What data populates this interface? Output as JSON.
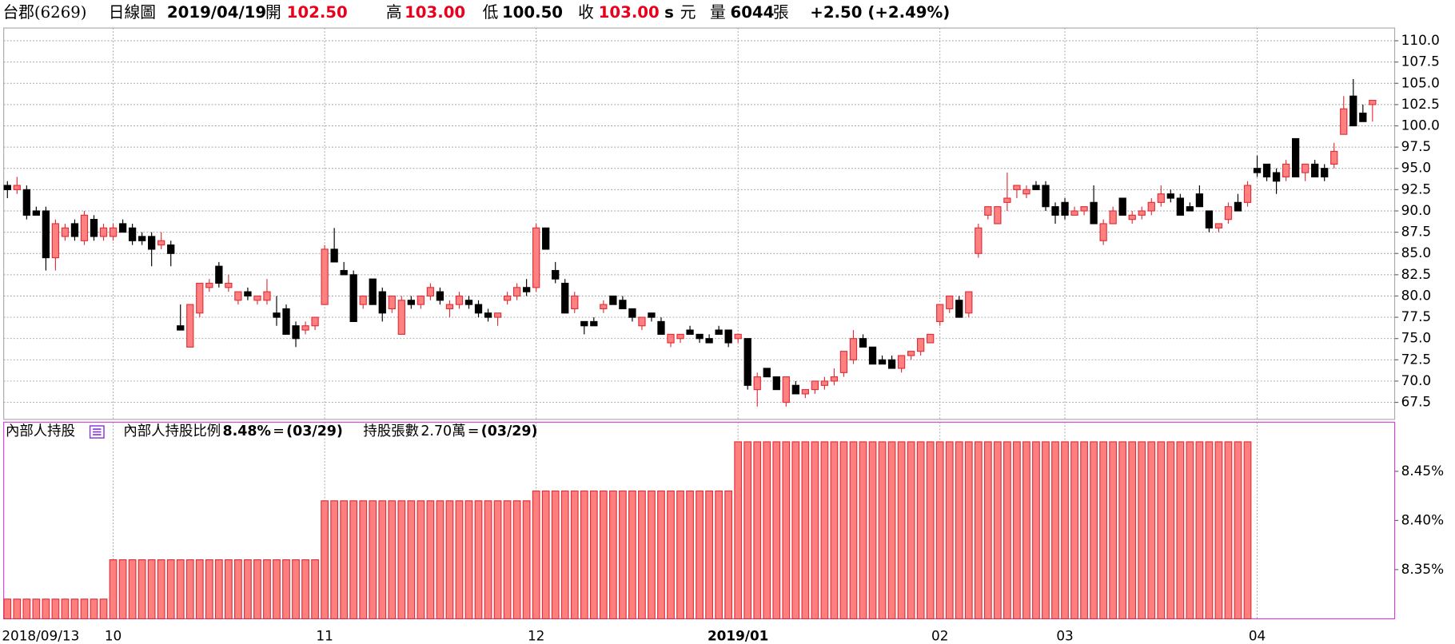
{
  "header": {
    "stock": "台郡(6269)",
    "period": "日線圖",
    "date": "2019/04/19",
    "open_label": "開",
    "open": "102.50",
    "high_label": "高",
    "high": "103.00",
    "low_label": "低",
    "low": "100.50",
    "close_label": "收",
    "close": "103.00",
    "s": "s",
    "unit": "元",
    "volume_label": "量",
    "volume": "6044",
    "volume_unit": "張",
    "change": "+2.50 (+2.49%)"
  },
  "chart_data": [
    {
      "type": "candlestick",
      "up_color": "#e0303a",
      "up_fill": "#ff8080",
      "down_color": "#000000",
      "grid": true,
      "ylim": [
        65.5,
        111.5
      ],
      "yticks": [
        67.5,
        {
          "value": 70,
          "label": "70.0"
        },
        72.5,
        {
          "value": 75,
          "label": "75.0"
        },
        77.5,
        {
          "value": 80,
          "label": "80.0"
        },
        82.5,
        {
          "value": 85,
          "label": "85.0"
        },
        87.5,
        {
          "value": 90,
          "label": "90.0"
        },
        92.5,
        {
          "value": 95,
          "label": "95.0"
        },
        97.5,
        {
          "value": 100,
          "label": "100.0"
        },
        102.5,
        {
          "value": 105,
          "label": "105.0"
        },
        107.5,
        {
          "value": 110,
          "label": "110.0"
        }
      ],
      "open": [
        93,
        92.5,
        92.5,
        90,
        90,
        84.5,
        87,
        88.5,
        86.5,
        89,
        87,
        87,
        88.5,
        88,
        87,
        87,
        86,
        86,
        76.5,
        74,
        78,
        81,
        83.5,
        81,
        79.5,
        80.5,
        79.5,
        79.5,
        78,
        78.5,
        76.5,
        76,
        76.5,
        79,
        85.5,
        83,
        82.5,
        79,
        82,
        80.5,
        78.5,
        75.5,
        79.5,
        79,
        80,
        80.5,
        78.5,
        79,
        79.5,
        79,
        78,
        77.5,
        79.5,
        80,
        81,
        81,
        88,
        83,
        81.5,
        78.5,
        77,
        77,
        78.5,
        80,
        79.5,
        78.5,
        76.5,
        78,
        77,
        74.5,
        75,
        76,
        75.5,
        75,
        76,
        76,
        75,
        75,
        69,
        71.5,
        70.5,
        67.5,
        69.5,
        68.5,
        69,
        69.5,
        70,
        71,
        72.5,
        75,
        74,
        72.5,
        72.5,
        71.5,
        73,
        73.5,
        74.5,
        77,
        78.5,
        79.5,
        78,
        85,
        89.5,
        88.5,
        91,
        92.5,
        92,
        93,
        93,
        90.5,
        91,
        89.5,
        90,
        91,
        86.5,
        88.5,
        91.5,
        89,
        89.5,
        90,
        91,
        92,
        91.5,
        90.5,
        92,
        90,
        88,
        89,
        91,
        91,
        95,
        95.5,
        94.5,
        94,
        98.5,
        94.5,
        95.5,
        95,
        95.5,
        99,
        103.5,
        101.5,
        102.5
      ],
      "high": [
        93.5,
        94,
        93,
        90.5,
        90.5,
        89,
        88.5,
        89,
        90,
        89.5,
        88.5,
        88.5,
        89,
        88.5,
        87.5,
        87.5,
        87.5,
        86.5,
        79,
        79,
        81.5,
        82,
        84,
        82.5,
        80.5,
        81,
        80,
        82,
        80,
        79,
        77,
        77,
        77.5,
        86,
        88,
        84,
        83,
        80,
        82,
        81,
        80,
        80,
        80,
        80,
        81.5,
        81,
        79.5,
        80.5,
        80,
        79.5,
        78.5,
        78,
        80.5,
        81.5,
        82,
        88.5,
        88,
        84,
        82,
        80.5,
        77,
        77.5,
        79.5,
        80,
        80,
        78.5,
        77.5,
        78,
        77.5,
        75.5,
        75.5,
        76.5,
        75.5,
        75.5,
        76.5,
        76,
        75.5,
        75,
        71,
        71.5,
        70.5,
        70.5,
        70,
        69,
        70,
        70.5,
        71.5,
        73.5,
        76,
        75.5,
        74,
        73,
        73,
        73,
        73.5,
        75,
        75.5,
        79,
        80,
        80,
        80.5,
        88.5,
        90.5,
        90.5,
        94.5,
        93,
        93,
        93.5,
        93.5,
        91,
        91.5,
        90.5,
        90.5,
        93,
        89,
        90.5,
        91.5,
        90,
        90.5,
        91.5,
        93,
        92.5,
        92,
        91,
        93,
        90,
        88.5,
        91,
        92,
        93.5,
        96.5,
        95.5,
        95,
        96,
        98.5,
        95.5,
        96,
        95.5,
        98,
        103.5,
        105.5,
        102.5,
        103
      ],
      "low": [
        91.5,
        92,
        89,
        89.5,
        83,
        83,
        86.5,
        86.5,
        86,
        86.5,
        86.5,
        86.5,
        87.5,
        86,
        86,
        83.5,
        85.5,
        83.5,
        76,
        74,
        77.5,
        80.5,
        81,
        80.5,
        79,
        79.5,
        79,
        79,
        76.5,
        75.5,
        74,
        75.5,
        76,
        79,
        84,
        82.5,
        77,
        78.5,
        79,
        77,
        78,
        75.5,
        78.5,
        78.5,
        79.5,
        79,
        77.5,
        78.5,
        78.5,
        77.5,
        77,
        76.5,
        79,
        79.5,
        80,
        80.5,
        85.5,
        81.5,
        78,
        78,
        75.5,
        76.5,
        78,
        79,
        78.5,
        77,
        76,
        77,
        75.5,
        74,
        74.5,
        75.5,
        74.5,
        74.5,
        75.5,
        74,
        74.5,
        69,
        67,
        70.5,
        69,
        67,
        68.5,
        68,
        68.5,
        69,
        69.5,
        70.5,
        72,
        74,
        72,
        72,
        71.5,
        71,
        72.5,
        73,
        74.5,
        76.5,
        78,
        77.5,
        77.5,
        84.5,
        89,
        88.5,
        90,
        91.5,
        91.5,
        92.5,
        90,
        88.5,
        89,
        89.5,
        89.5,
        88.5,
        86,
        88.5,
        89.5,
        88.5,
        89,
        89.5,
        90.5,
        91,
        89.5,
        90,
        90.5,
        87.5,
        87.5,
        88.5,
        90,
        90.5,
        94,
        93.5,
        92,
        93.5,
        94,
        93.5,
        94,
        93.5,
        95,
        99,
        100,
        100.5,
        100.5
      ],
      "close": [
        92.5,
        93,
        89.5,
        89.5,
        84.5,
        88.5,
        88,
        87,
        89.5,
        87,
        88,
        88,
        87.5,
        86.5,
        86.5,
        85.5,
        86.5,
        85,
        76,
        79,
        81.5,
        81.5,
        81.5,
        81.5,
        80.5,
        80,
        80,
        80.5,
        77.5,
        75.5,
        75,
        76.5,
        77.5,
        85.5,
        84,
        82.5,
        77,
        80,
        79,
        78,
        80,
        79.5,
        79,
        80,
        81,
        79.5,
        79,
        80,
        79,
        78,
        77.5,
        78,
        80,
        81,
        80.5,
        88,
        85.5,
        82,
        78,
        80,
        76.5,
        76.5,
        79,
        79,
        78.5,
        77.5,
        77.5,
        77.5,
        75.5,
        75.5,
        75.5,
        75.5,
        75,
        74.5,
        75.5,
        74.5,
        75.5,
        69.5,
        70.5,
        70.5,
        69,
        70.5,
        68.5,
        69,
        70,
        70,
        70.5,
        73.5,
        75,
        74,
        72,
        72,
        71.5,
        73,
        73.5,
        75,
        75.5,
        79,
        80,
        77.5,
        80.5,
        88,
        90.5,
        90.5,
        91.5,
        93,
        92.5,
        92.5,
        90.5,
        89.5,
        89.5,
        90,
        90.5,
        88.5,
        88.5,
        90,
        89.5,
        89.5,
        90,
        91,
        92,
        91.5,
        89.5,
        90,
        90.5,
        88,
        88.5,
        90.5,
        90,
        93,
        94.5,
        94,
        93.5,
        95.5,
        94,
        95.5,
        94,
        94,
        97,
        102,
        100,
        100.5,
        103
      ]
    },
    {
      "type": "bar",
      "title": "內部人持股",
      "color": "#ff7f7f",
      "edge_color": "#e0303a",
      "border_color": "#d63fd6",
      "legend": [
        {
          "name": "內部人持股比例",
          "value": "8.48%",
          "eq": "=",
          "date": "(03/29)",
          "color": "#e8408c"
        },
        {
          "name": "持股張數",
          "value": "2.70萬",
          "eq": "=",
          "date": "(03/29)",
          "color": "#1fb8b8"
        }
      ],
      "ylim": [
        8.3,
        8.5
      ],
      "yticks": [
        {
          "value": 8.35,
          "label": "8.35%"
        },
        {
          "value": 8.4,
          "label": "8.40%"
        },
        {
          "value": 8.45,
          "label": "8.45%"
        }
      ],
      "categories": [
        "2018/09/13",
        null,
        null,
        null,
        null,
        null,
        null,
        null,
        null,
        null,
        null,
        "10",
        null,
        null,
        null,
        null,
        null,
        null,
        null,
        null,
        null,
        null,
        null,
        null,
        null,
        null,
        null,
        null,
        null,
        null,
        null,
        null,
        null,
        "11",
        null,
        null,
        null,
        null,
        null,
        null,
        null,
        null,
        null,
        null,
        null,
        null,
        null,
        null,
        null,
        null,
        null,
        null,
        null,
        null,
        null,
        "12",
        null,
        null,
        null,
        null,
        null,
        null,
        null,
        null,
        null,
        null,
        null,
        null,
        null,
        null,
        null,
        null,
        null,
        null,
        null,
        null,
        "2019/01",
        null,
        null,
        null,
        null,
        null,
        null,
        null,
        null,
        null,
        null,
        null,
        null,
        null,
        null,
        null,
        null,
        null,
        null,
        null,
        null,
        "02",
        null,
        null,
        null,
        null,
        null,
        null,
        null,
        null,
        null,
        null,
        null,
        null,
        "03",
        null,
        null,
        null,
        null,
        null,
        null,
        null,
        null,
        null,
        null,
        null,
        null,
        null,
        null,
        null,
        null,
        null,
        null,
        null,
        "04",
        null,
        null,
        null,
        null,
        null,
        null,
        null,
        null,
        null,
        null,
        null,
        null
      ],
      "values": [
        8.32,
        8.32,
        8.32,
        8.32,
        8.32,
        8.32,
        8.32,
        8.32,
        8.32,
        8.32,
        8.32,
        8.36,
        8.36,
        8.36,
        8.36,
        8.36,
        8.36,
        8.36,
        8.36,
        8.36,
        8.36,
        8.36,
        8.36,
        8.36,
        8.36,
        8.36,
        8.36,
        8.36,
        8.36,
        8.36,
        8.36,
        8.36,
        8.36,
        8.42,
        8.42,
        8.42,
        8.42,
        8.42,
        8.42,
        8.42,
        8.42,
        8.42,
        8.42,
        8.42,
        8.42,
        8.42,
        8.42,
        8.42,
        8.42,
        8.42,
        8.42,
        8.42,
        8.42,
        8.42,
        8.42,
        8.43,
        8.43,
        8.43,
        8.43,
        8.43,
        8.43,
        8.43,
        8.43,
        8.43,
        8.43,
        8.43,
        8.43,
        8.43,
        8.43,
        8.43,
        8.43,
        8.43,
        8.43,
        8.43,
        8.43,
        8.43,
        8.48,
        8.48,
        8.48,
        8.48,
        8.48,
        8.48,
        8.48,
        8.48,
        8.48,
        8.48,
        8.48,
        8.48,
        8.48,
        8.48,
        8.48,
        8.48,
        8.48,
        8.48,
        8.48,
        8.48,
        8.48,
        8.48,
        8.48,
        8.48,
        8.48,
        8.48,
        8.48,
        8.48,
        8.48,
        8.48,
        8.48,
        8.48,
        8.48,
        8.48,
        8.48,
        8.48,
        8.48,
        8.48,
        8.48,
        8.48,
        8.48,
        8.48,
        8.48,
        8.48,
        8.48,
        8.48,
        8.48,
        8.48,
        8.48,
        8.48,
        8.48,
        8.48,
        8.48,
        8.48,
        null,
        null,
        null,
        null,
        null,
        null,
        null,
        null,
        null,
        null,
        null,
        null,
        null
      ]
    }
  ]
}
